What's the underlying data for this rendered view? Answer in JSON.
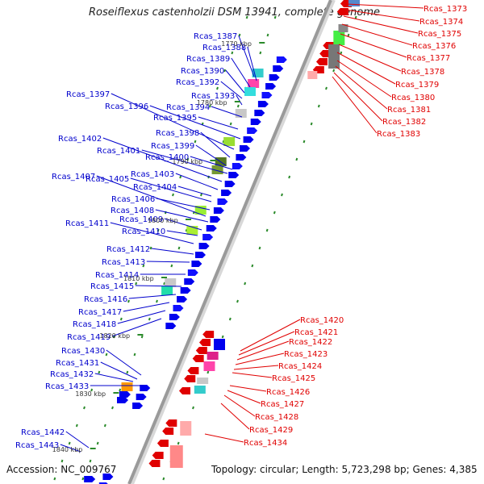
{
  "title": "Roseiflexus castenholzii DSM 13941, complete genome",
  "footer": {
    "accession": "Accession: NC_009767",
    "topology": "Topology: circular; Length: 5,723,298 bp; Genes: 4,385"
  },
  "colors": {
    "backbone": "#9a9a9a",
    "forward_label": "#0000cc",
    "reverse_label": "#e00000",
    "ticks": "#2a8a2a"
  },
  "ruler": [
    "1770 kbp",
    "1780 kbp",
    "1790 kbp",
    "1800 kbp",
    "1810 kbp",
    "1820 kbp",
    "1830 kbp",
    "1840 kbp"
  ],
  "forward_genes": [
    "Rcas_1387",
    "Rcas_1388",
    "Rcas_1389",
    "Rcas_1390",
    "Rcas_1392",
    "Rcas_1393",
    "Rcas_1394",
    "Rcas_1395",
    "Rcas_1396",
    "Rcas_1397",
    "Rcas_1398",
    "Rcas_1399",
    "Rcas_1400",
    "Rcas_1401",
    "Rcas_1402",
    "Rcas_1403",
    "Rcas_1404",
    "Rcas_1405",
    "Rcas_1406",
    "Rcas_1407",
    "Rcas_1408",
    "Rcas_1409",
    "Rcas_1410",
    "Rcas_1411",
    "Rcas_1412",
    "Rcas_1413",
    "Rcas_1414",
    "Rcas_1415",
    "Rcas_1416",
    "Rcas_1417",
    "Rcas_1418",
    "Rcas_1419",
    "Rcas_1430",
    "Rcas_1431",
    "Rcas_1432",
    "Rcas_1433",
    "Rcas_1442",
    "Rcas_1443"
  ],
  "reverse_genes_top": [
    "Rcas_1373",
    "Rcas_1374",
    "Rcas_1375",
    "Rcas_1376",
    "Rcas_1377",
    "Rcas_1378",
    "Rcas_1379",
    "Rcas_1380",
    "Rcas_1381",
    "Rcas_1382",
    "Rcas_1383"
  ],
  "reverse_genes_bottom": [
    "Rcas_1420",
    "Rcas_1421",
    "Rcas_1422",
    "Rcas_1423",
    "Rcas_1424",
    "Rcas_1425",
    "Rcas_1426",
    "Rcas_1427",
    "Rcas_1428",
    "Rcas_1429",
    "Rcas_1434"
  ]
}
